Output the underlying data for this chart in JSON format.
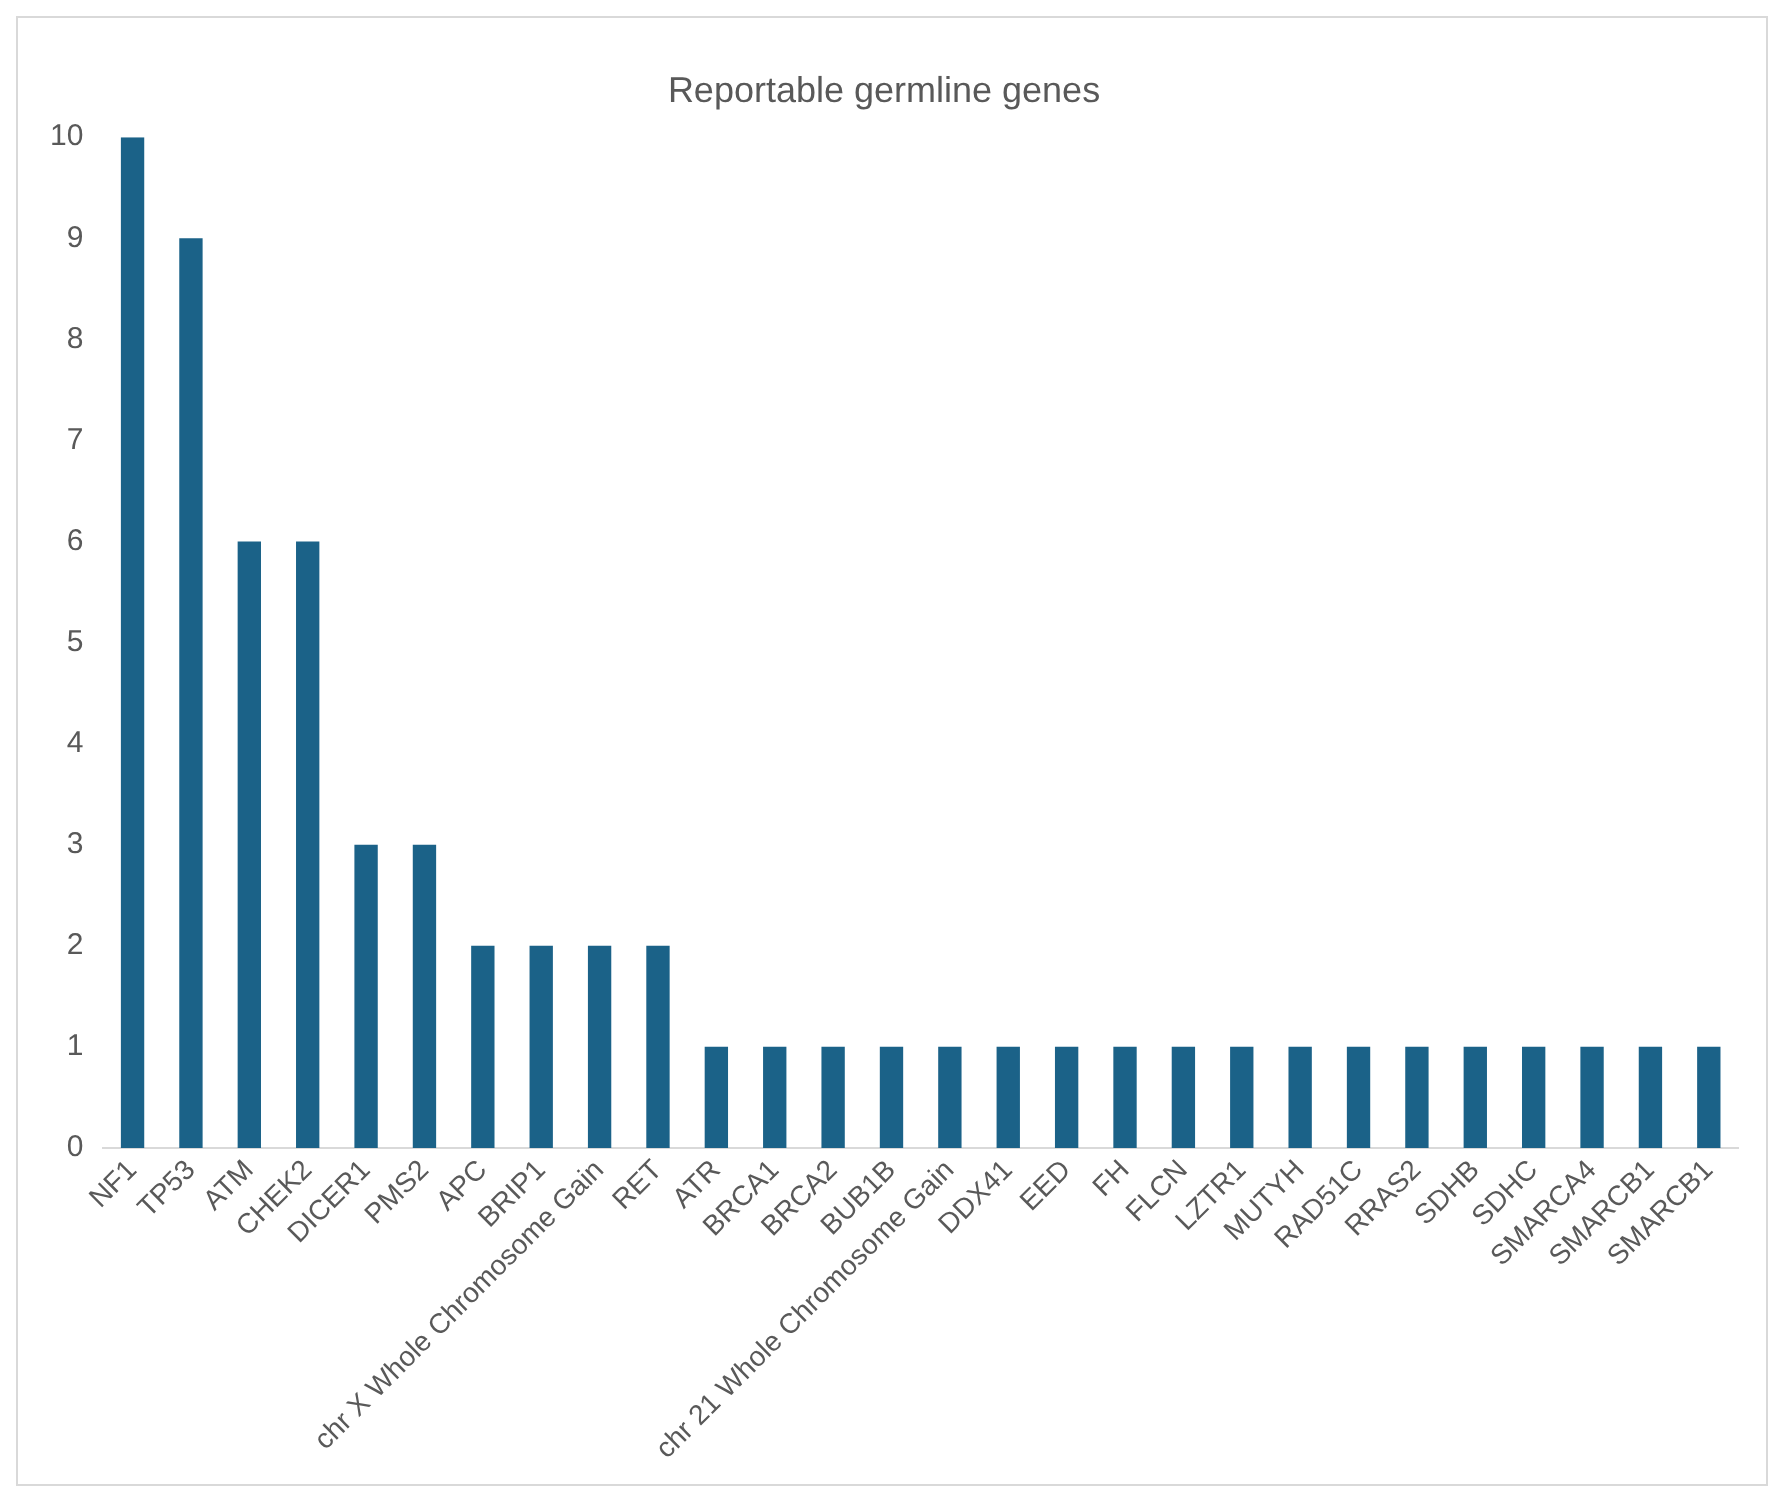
{
  "chart_data": {
    "type": "bar",
    "title": "Reportable germline genes",
    "categories": [
      "NF1",
      "TP53",
      "ATM",
      "CHEK2",
      "DICER1",
      "PMS2",
      "APC",
      "BRIP1",
      "chr X Whole Chromosome Gain",
      "RET",
      "ATR",
      "BRCA1",
      "BRCA2",
      "BUB1B",
      "chr 21 Whole Chromosome Gain",
      "DDX41",
      "EED",
      "FH",
      "FLCN",
      "LZTR1",
      "MUTYH",
      "RAD51C",
      "RRAS2",
      "SDHB",
      "SDHC",
      "SMARCA4",
      "SMARCB1",
      "SMARCB1"
    ],
    "values": [
      10,
      9,
      6,
      6,
      3,
      3,
      2,
      2,
      2,
      2,
      1,
      1,
      1,
      1,
      1,
      1,
      1,
      1,
      1,
      1,
      1,
      1,
      1,
      1,
      1,
      1,
      1,
      1
    ],
    "color": "#1b6288",
    "ylim": [
      0,
      10
    ],
    "yticks": [
      0,
      1,
      2,
      3,
      4,
      5,
      6,
      7,
      8,
      9,
      10
    ],
    "grid": false,
    "legend": false
  }
}
